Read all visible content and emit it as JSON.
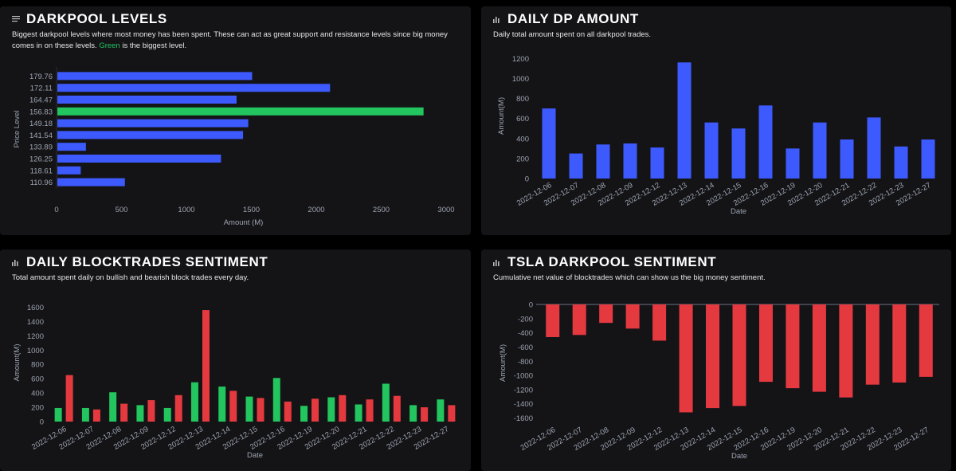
{
  "colors": {
    "blue": "#3d5afe",
    "green": "#22c55e",
    "red": "#e53940",
    "panel_bg": "#141417",
    "page_bg": "#000000"
  },
  "panels": {
    "darkpool_levels": {
      "title": "DARKPOOL LEVELS",
      "icon": "list-lines-icon",
      "desc_before": "Biggest darkpool levels where most money has been spent. These can act as great support and resistance levels since big money comes in on these levels. ",
      "desc_green": "Green",
      "desc_after": " is the biggest level."
    },
    "daily_dp_amount": {
      "title": "DAILY DP AMOUNT",
      "icon": "bar-chart-icon",
      "desc": "Daily total amount spent on all darkpool trades."
    },
    "daily_blocktrades": {
      "title": "DAILY BLOCKTRADES SENTIMENT",
      "icon": "bar-chart-icon",
      "desc": "Total amount spent daily on bullish and bearish block trades every day."
    },
    "tsla_sentiment": {
      "title": "TSLA DARKPOOL SENTIMENT",
      "icon": "bar-chart-icon",
      "desc": "Cumulative net value of blocktrades which can show us the big money sentiment."
    }
  },
  "chart_data": [
    {
      "type": "bar",
      "orientation": "horizontal",
      "categories": [
        "179.76",
        "172.11",
        "164.47",
        "156.83",
        "149.18",
        "141.54",
        "133.89",
        "126.25",
        "118.61",
        "110.96"
      ],
      "values": [
        1500,
        2100,
        1380,
        2820,
        1470,
        1430,
        220,
        1260,
        180,
        520
      ],
      "highlight_index": 3,
      "xlabel": "Amount (M)",
      "ylabel": "Price Level",
      "xlim": [
        0,
        3000
      ],
      "xticks": [
        "0",
        "500",
        "1000",
        "1500",
        "2000",
        "2500",
        "3000"
      ]
    },
    {
      "type": "bar",
      "categories": [
        "2022-12-06",
        "2022-12-07",
        "2022-12-08",
        "2022-12-09",
        "2022-12-12",
        "2022-12-13",
        "2022-12-14",
        "2022-12-15",
        "2022-12-16",
        "2022-12-19",
        "2022-12-20",
        "2022-12-21",
        "2022-12-22",
        "2022-12-23",
        "2022-12-27"
      ],
      "values": [
        700,
        250,
        340,
        350,
        310,
        1160,
        560,
        500,
        730,
        300,
        560,
        390,
        610,
        320,
        390
      ],
      "xlabel": "Date",
      "ylabel": "Amount(M)",
      "ylim": [
        0,
        1250
      ],
      "yticks": [
        "0",
        "200",
        "400",
        "600",
        "800",
        "1000",
        "1200"
      ]
    },
    {
      "type": "bar",
      "categories": [
        "2022-12-06",
        "2022-12-07",
        "2022-12-08",
        "2022-12-09",
        "2022-12-12",
        "2022-12-13",
        "2022-12-14",
        "2022-12-15",
        "2022-12-16",
        "2022-12-19",
        "2022-12-20",
        "2022-12-21",
        "2022-12-22",
        "2022-12-23",
        "2022-12-27"
      ],
      "series": [
        {
          "color": "#22c55e",
          "values": [
            190,
            190,
            410,
            230,
            190,
            550,
            490,
            350,
            610,
            220,
            340,
            240,
            530,
            230,
            310
          ]
        },
        {
          "color": "#e53940",
          "values": [
            650,
            170,
            250,
            300,
            370,
            1560,
            430,
            330,
            280,
            320,
            370,
            310,
            360,
            200,
            230
          ]
        }
      ],
      "xlabel": "Date",
      "ylabel": "Amount(M)",
      "ylim": [
        0,
        1650
      ],
      "yticks": [
        "0",
        "200",
        "400",
        "600",
        "800",
        "1000",
        "1200",
        "1400",
        "1600"
      ]
    },
    {
      "type": "bar",
      "categories": [
        "2022-12-06",
        "2022-12-07",
        "2022-12-08",
        "2022-12-09",
        "2022-12-12",
        "2022-12-13",
        "2022-12-14",
        "2022-12-15",
        "2022-12-16",
        "2022-12-19",
        "2022-12-20",
        "2022-12-21",
        "2022-12-22",
        "2022-12-23",
        "2022-12-27"
      ],
      "values": [
        -460,
        -430,
        -260,
        -340,
        -510,
        -1520,
        -1460,
        -1430,
        -1090,
        -1180,
        -1230,
        -1310,
        -1130,
        -1100,
        -1020
      ],
      "xlabel": "Date",
      "ylabel": "Amount(M)",
      "ylim": [
        -1650,
        0
      ],
      "yticks": [
        "0",
        "-200",
        "-400",
        "-600",
        "-800",
        "-1000",
        "-1200",
        "-1400",
        "-1600"
      ]
    }
  ]
}
